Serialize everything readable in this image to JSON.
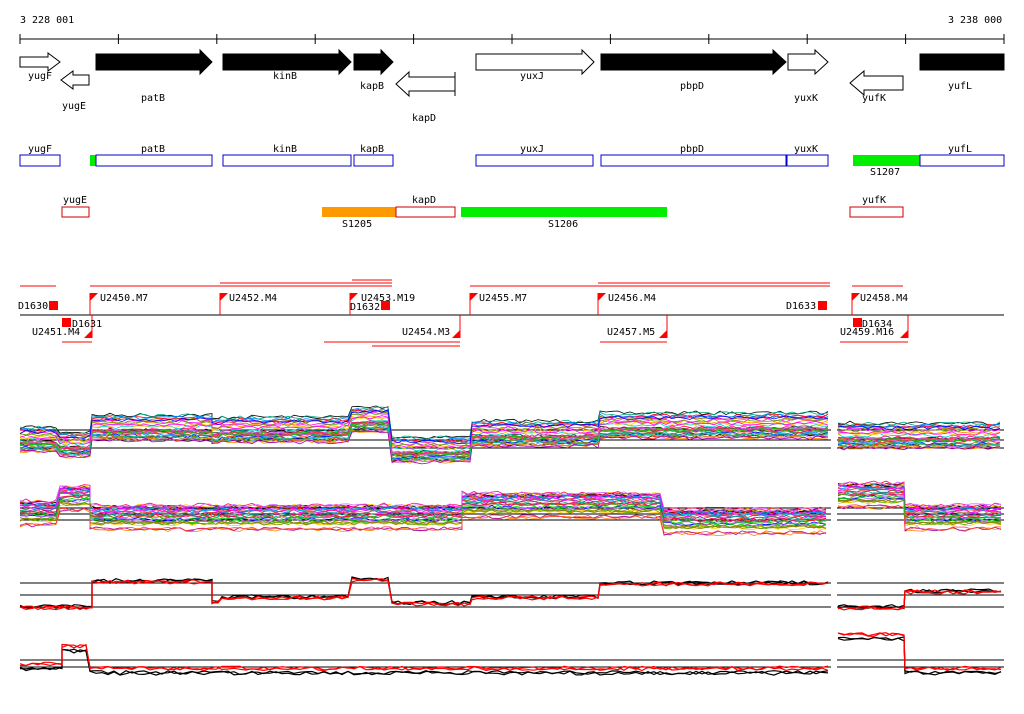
{
  "coordinates": {
    "start_label": "3 228 001",
    "end_label": "3 238 000"
  },
  "colors": {
    "gene_fwd": "#000000",
    "gene_rev_outline": "#000000",
    "box_plus": "#0000cc",
    "box_minus": "#cc0000",
    "seg_orange": "#ff9900",
    "seg_green": "#00ee00",
    "red": "#ff0000",
    "black": "#000000"
  },
  "genes": [
    {
      "name": "yugF",
      "style": "open"
    },
    {
      "name": "yugE",
      "style": "open"
    },
    {
      "name": "patB",
      "style": "filled"
    },
    {
      "name": "kinB",
      "style": "filled"
    },
    {
      "name": "kapB",
      "style": "filled"
    },
    {
      "name": "kapD",
      "style": "open"
    },
    {
      "name": "yuxJ",
      "style": "open"
    },
    {
      "name": "pbpD",
      "style": "filled"
    },
    {
      "name": "yuxK",
      "style": "open"
    },
    {
      "name": "yufK",
      "style": "open"
    },
    {
      "name": "yufL",
      "style": "filled"
    }
  ],
  "plus_boxes": [
    "yugF",
    "patB",
    "kinB",
    "kapB",
    "yuxJ",
    "pbpD",
    "yuxK",
    "yufL"
  ],
  "minus_boxes": [
    "yugE",
    "kapD",
    "yufK"
  ],
  "segments": [
    {
      "name": "S1205",
      "color": "orange"
    },
    {
      "name": "S1206",
      "color": "green"
    },
    {
      "name": "S1207",
      "color": "green"
    }
  ],
  "upper_features": [
    "D1630",
    "U2450.M7",
    "U2452.M4",
    "U2453.M19",
    "D1632",
    "U2455.M7",
    "U2456.M4",
    "D1633",
    "U2458.M4"
  ],
  "lower_features": [
    "U2451.M4",
    "D1631",
    "U2454.M3",
    "U2457.M5",
    "D1634",
    "U2459.M16"
  ],
  "profile_panels": 4
}
